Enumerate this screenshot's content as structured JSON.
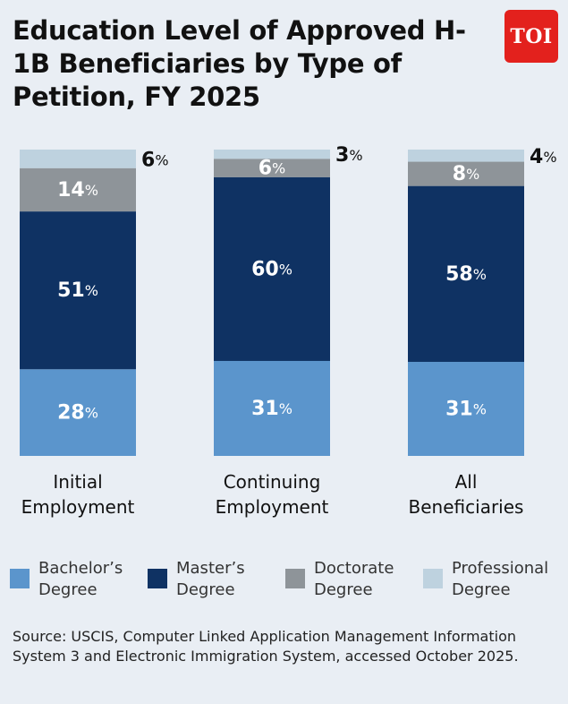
{
  "title": "Education Level of Approved H-1B Beneficiaries by Type of Petition, FY 2025",
  "logo_text": "TOI",
  "source": "Source: USCIS, Computer Linked Application Management Information System 3 and Electronic Immigration System, accessed October 2025.",
  "colors": {
    "bachelor": "#5b95cc",
    "master": "#0f3263",
    "doctorate": "#8e9499",
    "professional": "#bed2df",
    "logo": "#e3211d"
  },
  "chart_data": {
    "type": "bar",
    "stacked": true,
    "normalized": true,
    "categories": [
      [
        "Initial",
        "Employment"
      ],
      [
        "Continuing",
        "Employment"
      ],
      [
        "All",
        "Beneficiaries"
      ]
    ],
    "series": [
      {
        "name": "Bachelor's Degree",
        "key": "bachelor",
        "values": [
          28,
          31,
          31
        ]
      },
      {
        "name": "Master's Degree",
        "key": "master",
        "values": [
          51,
          60,
          58
        ]
      },
      {
        "name": "Doctorate Degree",
        "key": "doctorate",
        "values": [
          14,
          6,
          8
        ]
      },
      {
        "name": "Professional Degree",
        "key": "professional",
        "values": [
          6,
          3,
          4
        ]
      }
    ],
    "unit": "%",
    "legend_position": "bottom",
    "grid": false
  },
  "legend": [
    {
      "key": "bachelor",
      "line1": "Bachelor’s",
      "line2": "Degree"
    },
    {
      "key": "master",
      "line1": "Master’s",
      "line2": "Degree"
    },
    {
      "key": "doctorate",
      "line1": "Doctorate",
      "line2": "Degree"
    },
    {
      "key": "professional",
      "line1": "Professional",
      "line2": "Degree"
    }
  ]
}
